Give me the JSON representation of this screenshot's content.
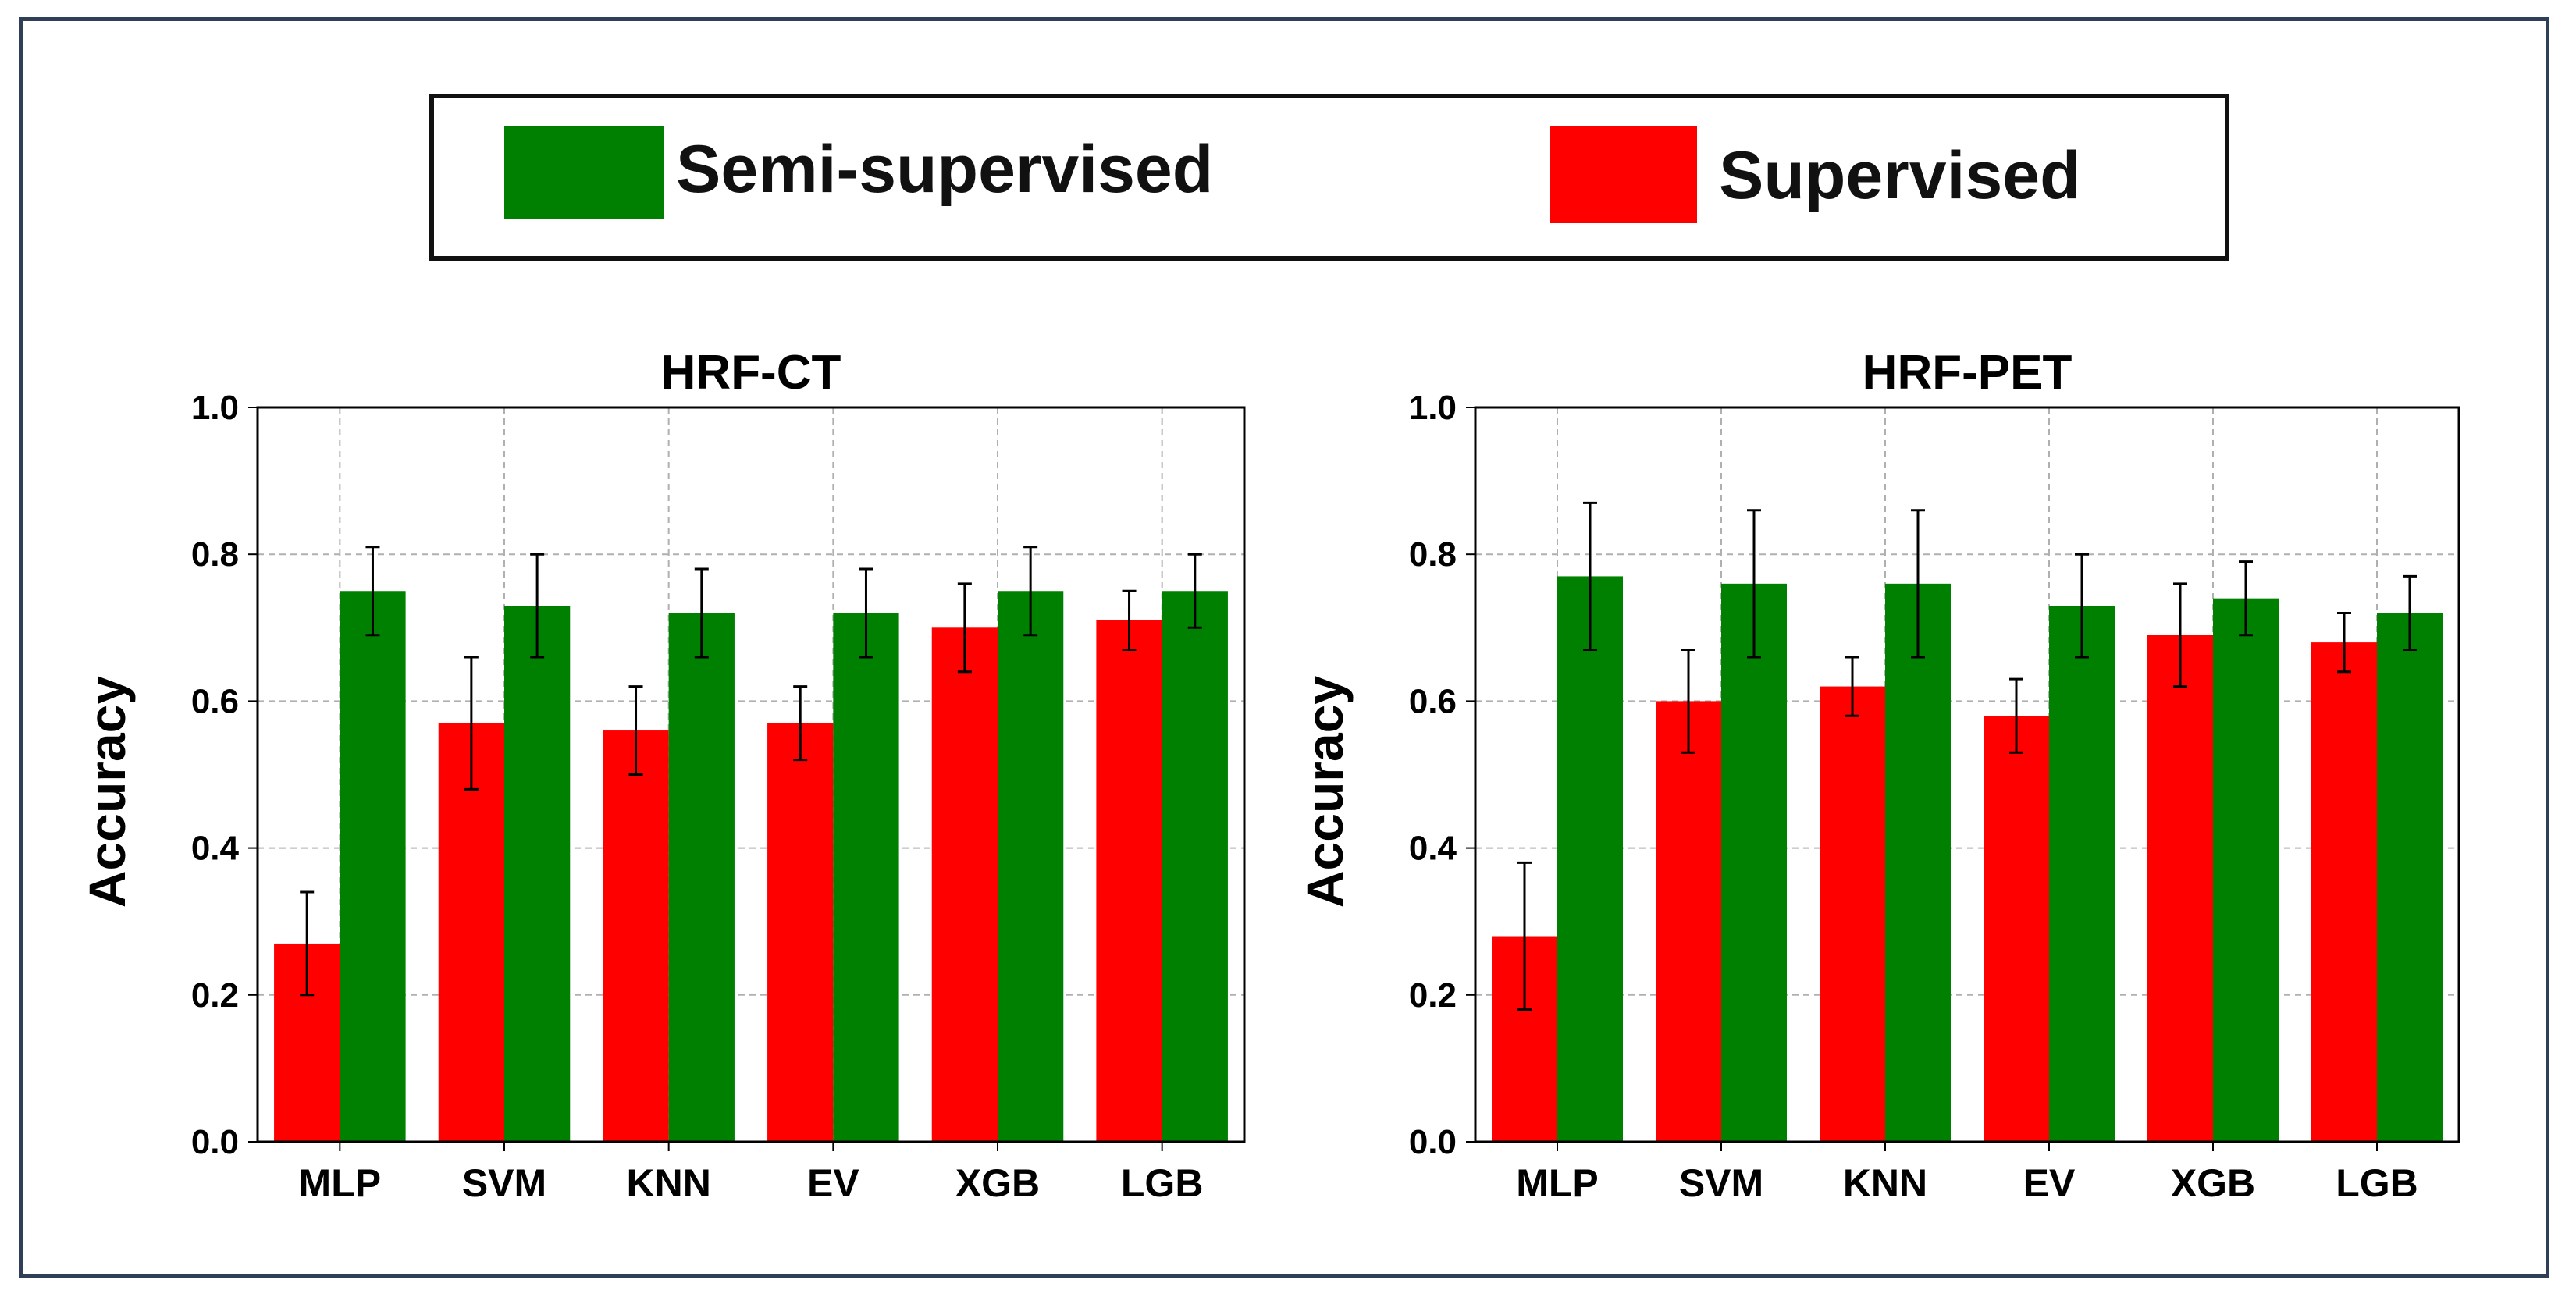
{
  "legend": {
    "semi_label": "Semi-supervised",
    "sup_label": "Supervised"
  },
  "colors": {
    "semi": "#008000",
    "sup": "#ff0000",
    "frame": "#2f3f57",
    "grid": "#b0b0b0"
  },
  "chart_data": [
    {
      "type": "bar",
      "title": "HRF-CT",
      "xlabel": "",
      "ylabel": "Accuracy",
      "ylim": [
        0.0,
        1.0
      ],
      "yticks": [
        "0.0",
        "0.2",
        "0.4",
        "0.6",
        "0.8",
        "1.0"
      ],
      "grid": true,
      "categories": [
        "MLP",
        "SVM",
        "KNN",
        "EV",
        "XGB",
        "LGB"
      ],
      "series": [
        {
          "name": "Supervised",
          "values": [
            0.27,
            0.57,
            0.56,
            0.57,
            0.7,
            0.71
          ],
          "err": [
            0.07,
            0.09,
            0.06,
            0.05,
            0.06,
            0.04
          ]
        },
        {
          "name": "Semi-supervised",
          "values": [
            0.75,
            0.73,
            0.72,
            0.72,
            0.75,
            0.75
          ],
          "err": [
            0.06,
            0.07,
            0.06,
            0.06,
            0.06,
            0.05
          ]
        }
      ]
    },
    {
      "type": "bar",
      "title": "HRF-PET",
      "xlabel": "",
      "ylabel": "Accuracy",
      "ylim": [
        0.0,
        1.0
      ],
      "yticks": [
        "0.0",
        "0.2",
        "0.4",
        "0.6",
        "0.8",
        "1.0"
      ],
      "grid": true,
      "categories": [
        "MLP",
        "SVM",
        "KNN",
        "EV",
        "XGB",
        "LGB"
      ],
      "series": [
        {
          "name": "Supervised",
          "values": [
            0.28,
            0.6,
            0.62,
            0.58,
            0.69,
            0.68
          ],
          "err": [
            0.1,
            0.07,
            0.04,
            0.05,
            0.07,
            0.04
          ]
        },
        {
          "name": "Semi-supervised",
          "values": [
            0.77,
            0.76,
            0.76,
            0.73,
            0.74,
            0.72
          ],
          "err": [
            0.1,
            0.1,
            0.1,
            0.07,
            0.05,
            0.05
          ]
        }
      ]
    }
  ]
}
